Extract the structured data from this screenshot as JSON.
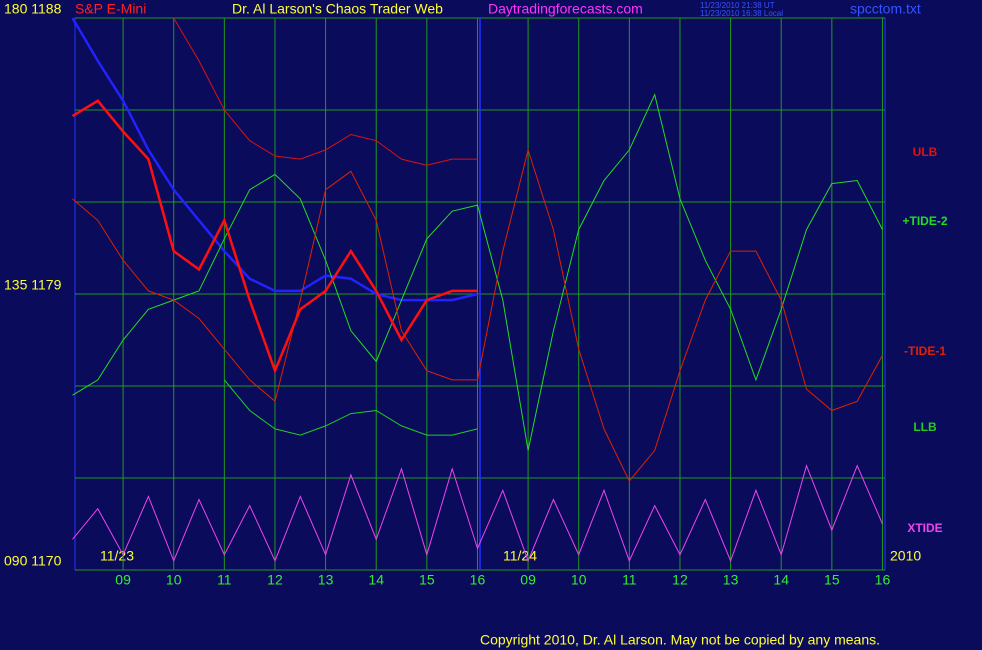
{
  "chart_data": {
    "type": "line",
    "title": "Dr. Al Larson's Chaos Trader Web",
    "subtitle": "S&P E-Mini",
    "site": "Daytradingforecasts.com",
    "timestamps": [
      "11/23/2010 21:38 UT",
      "11/23/2010 16:38 Local"
    ],
    "file": "spcctom.txt",
    "copyright": "Copyright 2010, Dr. Al Larson. May not be copied by any means.",
    "date_labels": [
      "11/23",
      "11/24",
      "2010"
    ],
    "grid": true,
    "background": "#0b0b5c",
    "grid_color": "#1f9a1f",
    "xlim": [
      0.05,
      16.05
    ],
    "xticks": [
      {
        "value": 1,
        "label": "09"
      },
      {
        "value": 2,
        "label": "10"
      },
      {
        "value": 3,
        "label": "11"
      },
      {
        "value": 4,
        "label": "12"
      },
      {
        "value": 5,
        "label": "13"
      },
      {
        "value": 6,
        "label": "14"
      },
      {
        "value": 7,
        "label": "15"
      },
      {
        "value": 8,
        "label": "16"
      },
      {
        "value": 9,
        "label": "09"
      },
      {
        "value": 10,
        "label": "10"
      },
      {
        "value": 11,
        "label": "11"
      },
      {
        "value": 12,
        "label": "12"
      },
      {
        "value": 13,
        "label": "13"
      },
      {
        "value": 14,
        "label": "14"
      },
      {
        "value": 15,
        "label": "15"
      },
      {
        "value": 16,
        "label": "16"
      }
    ],
    "ylim": [
      1170,
      1188
    ],
    "yticks": [
      {
        "value": 1188,
        "label": "180  1188"
      },
      {
        "value": 1179,
        "label": "135  1179"
      },
      {
        "value": 1170,
        "label": "090  1170"
      }
    ],
    "minor_yticks": [
      1173,
      1176,
      1182,
      1185
    ],
    "x": [
      0,
      0.5,
      1,
      1.5,
      2,
      2.5,
      3,
      3.5,
      4,
      4.5,
      5,
      5.5,
      6,
      6.5,
      7,
      7.5,
      8,
      8.5,
      9,
      9.5,
      10,
      10.5,
      11,
      11.5,
      12,
      12.5,
      13,
      13.5,
      14,
      14.5,
      15,
      15.5,
      16
    ],
    "series": [
      {
        "color": "#2222ff",
        "values": [
          1188.0,
          1186.6,
          1185.3,
          1183.7,
          1182.4,
          1181.4,
          1180.4,
          1179.5,
          1179.1,
          1179.1,
          1179.6,
          1179.5,
          1179.0,
          1178.8,
          1178.8,
          1178.8,
          1179.0,
          null,
          null,
          null,
          null,
          null,
          null,
          null,
          null,
          null,
          null,
          null,
          null,
          null,
          null,
          null,
          null
        ]
      },
      {
        "name": "ULB",
        "color": "#dd1111",
        "values": [
          null,
          null,
          null,
          null,
          1188.0,
          1186.6,
          1185.0,
          1184.0,
          1183.5,
          1183.4,
          1183.7,
          1184.2,
          1184.0,
          1183.4,
          1183.2,
          1183.4,
          1183.4,
          null,
          null,
          null,
          null,
          null,
          null,
          null,
          null,
          null,
          null,
          null,
          null,
          null,
          null,
          null,
          null
        ]
      },
      {
        "name": "+TIDE-2",
        "color": "#22dd22",
        "values": [
          1175.7,
          1176.2,
          1177.5,
          1178.5,
          1178.8,
          1179.1,
          1180.8,
          1182.4,
          1182.9,
          1182.1,
          1180.1,
          1177.8,
          1176.8,
          1178.8,
          1180.8,
          1181.7,
          1181.9,
          1178.8,
          1173.9,
          1177.8,
          1181.1,
          1182.7,
          1183.7,
          1185.5,
          1182.1,
          1180.1,
          1178.5,
          1176.2,
          1178.5,
          1181.1,
          1182.6,
          1182.7,
          1181.1
        ]
      },
      {
        "name": "-TIDE-1",
        "color": "#dd2200",
        "values": [
          1182.1,
          1181.4,
          1180.1,
          1179.1,
          1178.8,
          1178.2,
          1177.2,
          1176.2,
          1175.5,
          1178.8,
          1182.4,
          1183.0,
          1181.4,
          1177.8,
          1176.5,
          1176.2,
          1176.2,
          1180.4,
          1183.7,
          1181.1,
          1177.2,
          1174.6,
          1172.9,
          1173.9,
          1176.5,
          1178.8,
          1180.4,
          1180.4,
          1178.8,
          1175.9,
          1175.2,
          1175.5,
          1177.0
        ]
      },
      {
        "name": "LLB",
        "color": "#22cc22",
        "values": [
          null,
          null,
          null,
          null,
          null,
          null,
          1176.2,
          1175.2,
          1174.6,
          1174.4,
          1174.7,
          1175.1,
          1175.2,
          1174.7,
          1174.4,
          1174.4,
          1174.6,
          null,
          null,
          null,
          null,
          null,
          null,
          null,
          null,
          null,
          null,
          null,
          null,
          null,
          null,
          null,
          null
        ]
      },
      {
        "name": "XTIDE",
        "color": "#ee44ee",
        "values": [
          1171.0,
          1172.0,
          1170.5,
          1172.4,
          1170.3,
          1172.3,
          1170.5,
          1172.1,
          1170.3,
          1172.4,
          1170.5,
          1173.1,
          1171.0,
          1173.3,
          1170.5,
          1173.3,
          1170.7,
          1172.6,
          1170.3,
          1172.3,
          1170.5,
          1172.6,
          1170.3,
          1172.1,
          1170.5,
          1172.3,
          1170.3,
          1172.6,
          1170.5,
          1173.4,
          1171.3,
          1173.4,
          1171.5
        ]
      },
      {
        "color": "#ff1010",
        "values": [
          1184.8,
          1185.3,
          1184.3,
          1183.4,
          1180.4,
          1179.8,
          1181.4,
          1178.8,
          1176.5,
          1178.5,
          1179.1,
          1180.4,
          1179.1,
          1177.5,
          1178.8,
          1179.1,
          1179.1,
          null,
          null,
          null,
          null,
          null,
          null,
          null,
          null,
          null,
          null,
          null,
          null,
          null,
          null,
          null,
          null
        ]
      }
    ]
  }
}
